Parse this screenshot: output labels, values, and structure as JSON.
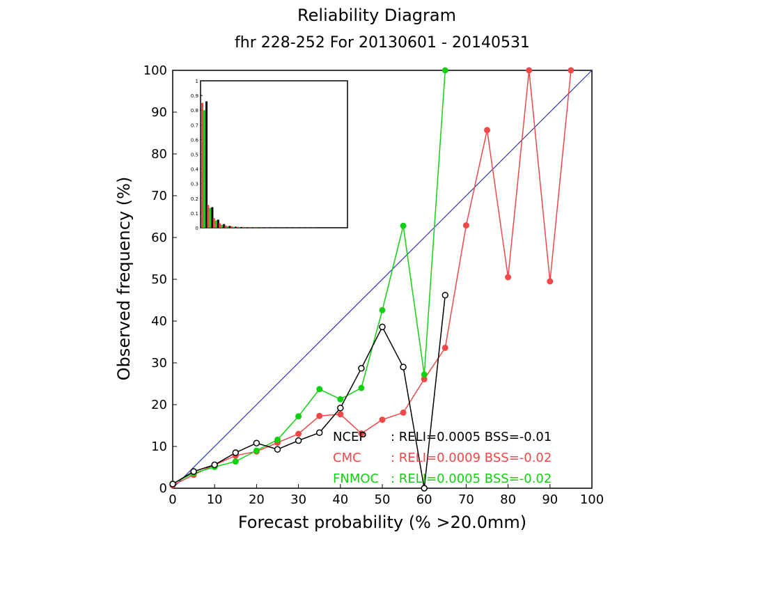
{
  "chart_data": {
    "type": "line",
    "title": "Reliability Diagram",
    "subtitle": "fhr 228-252 For 20130601 - 20140531",
    "xlabel": "Forecast probability (% >20.0mm)",
    "ylabel": "Observed frequency (%)",
    "xlim": [
      0,
      100
    ],
    "ylim": [
      0,
      100
    ],
    "x_ticks": [
      "0",
      "10",
      "20",
      "30",
      "40",
      "50",
      "60",
      "70",
      "80",
      "90",
      "100"
    ],
    "y_ticks": [
      "0",
      "10",
      "20",
      "30",
      "40",
      "50",
      "60",
      "70",
      "80",
      "90",
      "100"
    ],
    "diagonal": {
      "color": "#2a36b1",
      "from": [
        0,
        0
      ],
      "to": [
        100,
        100
      ]
    },
    "series": [
      {
        "name": "NCEP",
        "color": "#000000",
        "marker": "open-circle",
        "stats": ": RELI=0.0005 BSS=-0.01",
        "x": [
          0,
          5,
          10,
          15,
          20,
          25,
          30,
          35,
          40,
          45,
          50,
          55,
          60,
          65
        ],
        "y": [
          1.0,
          4.0,
          5.6,
          8.5,
          10.8,
          9.3,
          11.4,
          13.3,
          19.2,
          28.7,
          38.6,
          29.0,
          0,
          46.2
        ]
      },
      {
        "name": "CMC",
        "color": "#f04848",
        "marker": "filled-circle",
        "stats": ": RELI=0.0009 BSS=-0.02",
        "x": [
          0,
          5,
          10,
          15,
          20,
          25,
          30,
          35,
          40,
          45,
          50,
          55,
          60,
          65,
          70,
          75,
          80,
          85,
          90,
          95
        ],
        "y": [
          0.7,
          3.2,
          5.6,
          7.8,
          8.8,
          10.9,
          13.0,
          17.3,
          17.7,
          13.1,
          16.4,
          18.1,
          26.1,
          33.6,
          62.9,
          85.7,
          50.5,
          100,
          49.5,
          100
        ]
      },
      {
        "name": "FNMOC",
        "color": "#12d012",
        "marker": "filled-circle",
        "stats": ": RELI=0.0005 BSS=-0.02",
        "x": [
          0,
          5,
          10,
          15,
          20,
          25,
          30,
          35,
          40,
          45,
          50,
          55,
          60,
          65
        ],
        "y": [
          1.1,
          3.6,
          5.1,
          6.4,
          9.0,
          11.6,
          17.2,
          23.7,
          21.3,
          24.0,
          42.6,
          62.8,
          27.2,
          100
        ]
      }
    ],
    "inset": {
      "type": "bar",
      "title": "",
      "ylim": [
        0,
        1
      ],
      "y_ticks": [
        "0",
        "0.1",
        "0.2",
        "0.3",
        "0.4",
        "0.5",
        "0.6",
        "0.7",
        "0.8",
        "0.9",
        "1"
      ],
      "bin_centers": [
        0,
        5,
        10,
        15,
        20,
        25,
        30,
        35,
        40,
        45,
        50,
        55,
        60,
        65,
        70,
        75,
        80,
        85,
        90,
        95
      ],
      "series": [
        {
          "name": "CMC",
          "color": "#f04848",
          "values": [
            0.85,
            0.155,
            0.065,
            0.03,
            0.015,
            0.01,
            0.007,
            0.005,
            0.004,
            0.003,
            0.002,
            0.002,
            0.001,
            0.001,
            0.001,
            0.001,
            0.001,
            0.001,
            0.001,
            0.001
          ]
        },
        {
          "name": "FNMOC",
          "color": "#12d012",
          "values": [
            0.8,
            0.135,
            0.05,
            0.02,
            0.01,
            0.006,
            0.004,
            0.003,
            0.002,
            0.002,
            0.001,
            0.001,
            0.001,
            0.001,
            0,
            0,
            0,
            0,
            0,
            0
          ]
        },
        {
          "name": "NCEP",
          "color": "#000000",
          "values": [
            0.86,
            0.14,
            0.055,
            0.025,
            0.012,
            0.007,
            0.005,
            0.003,
            0.002,
            0.002,
            0.001,
            0.001,
            0.001,
            0.001,
            0,
            0,
            0,
            0,
            0,
            0
          ]
        }
      ]
    }
  }
}
